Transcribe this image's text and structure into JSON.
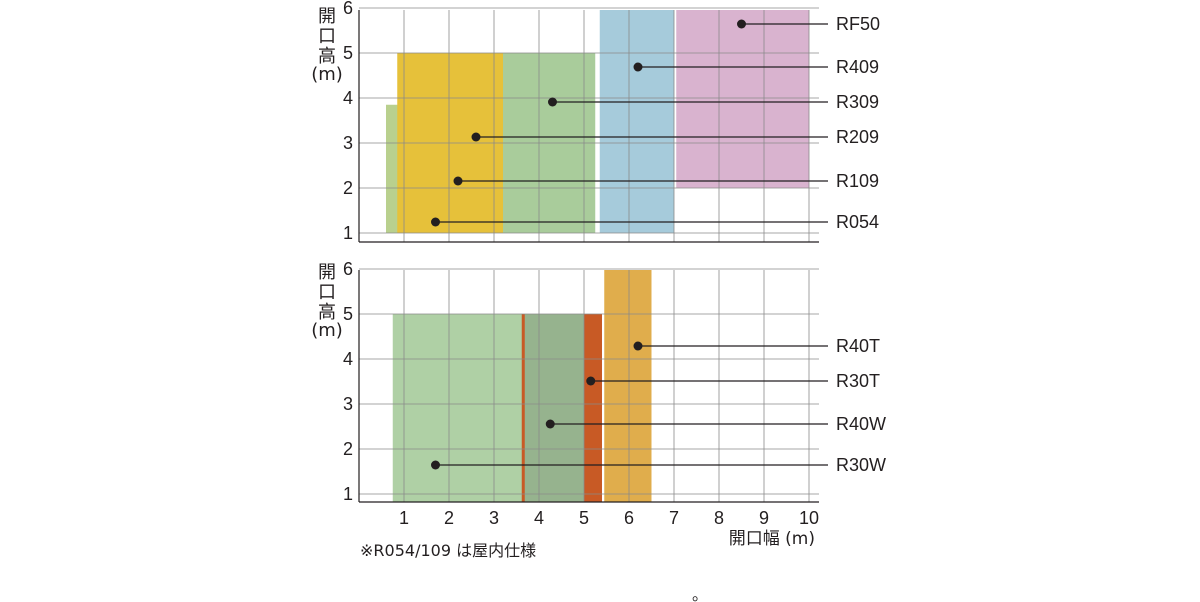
{
  "ylabel_chars": [
    "開",
    "口",
    "高",
    "(m)"
  ],
  "xlabel": "開口幅 (m)",
  "note": "※R054/109 は屋内仕様",
  "stray_mark": "。",
  "chart_data": [
    {
      "type": "range-rect",
      "xlim": [
        0,
        10
      ],
      "ylim": [
        0.8,
        6
      ],
      "xticks": [],
      "yticks": [
        1,
        2,
        3,
        4,
        5,
        6
      ],
      "grid": true,
      "series": [
        {
          "name": "R054",
          "x": [
            0.7,
            2.0
          ],
          "y": [
            1.0,
            3.6
          ],
          "color": "#6a9a87",
          "marker": [
            1.7,
            1.3
          ]
        },
        {
          "name": "R109",
          "x": [
            0.6,
            2.4
          ],
          "y": [
            1.0,
            3.85
          ],
          "color": "#b9d08e",
          "marker": [
            2.2,
            2.2
          ]
        },
        {
          "name": "R209",
          "x": [
            0.85,
            3.2
          ],
          "y": [
            1.0,
            5.0
          ],
          "color": "#e6c13a",
          "marker": [
            2.6,
            3.15
          ]
        },
        {
          "name": "R309",
          "x": [
            3.2,
            5.25
          ],
          "y": [
            1.0,
            5.0
          ],
          "color": "#a9cc9b",
          "marker": [
            4.3,
            3.95
          ]
        },
        {
          "name": "R409",
          "x": [
            5.35,
            7.0
          ],
          "y": [
            1.0,
            6.0
          ],
          "color": "#a6cbdb",
          "marker": [
            6.2,
            4.75
          ]
        },
        {
          "name": "RF50",
          "x": [
            7.05,
            10.0
          ],
          "y": [
            2.0,
            6.0
          ],
          "color": "#d9b3cf",
          "marker": [
            8.5,
            5.65
          ]
        }
      ]
    },
    {
      "type": "range-rect",
      "xlim": [
        0,
        10
      ],
      "ylim": [
        0.8,
        6
      ],
      "xticks": [
        1,
        2,
        3,
        4,
        5,
        6,
        7,
        8,
        9,
        10
      ],
      "yticks": [
        1,
        2,
        3,
        4,
        5,
        6
      ],
      "grid": true,
      "series": [
        {
          "name": "R30W",
          "x": [
            0.75,
            3.65
          ],
          "y": [
            0.8,
            5.0
          ],
          "color": "#afd0a5",
          "marker": [
            1.7,
            1.7
          ]
        },
        {
          "name": "R40W",
          "x": [
            3.65,
            5.0
          ],
          "y": [
            0.8,
            5.0
          ],
          "color": "#96b38e",
          "marker": [
            4.25,
            2.6
          ]
        },
        {
          "name": "R30T",
          "x": [
            5.0,
            5.4
          ],
          "y": [
            0.8,
            5.0
          ],
          "color": "#c85a25",
          "marker": [
            5.15,
            3.55
          ]
        },
        {
          "name": "R40T",
          "x": [
            5.45,
            6.5
          ],
          "y": [
            0.8,
            6.0
          ],
          "color": "#e0ad4c",
          "marker": [
            6.2,
            4.35
          ]
        }
      ],
      "separator": {
        "x": 3.65,
        "color": "#c85a25"
      }
    }
  ]
}
